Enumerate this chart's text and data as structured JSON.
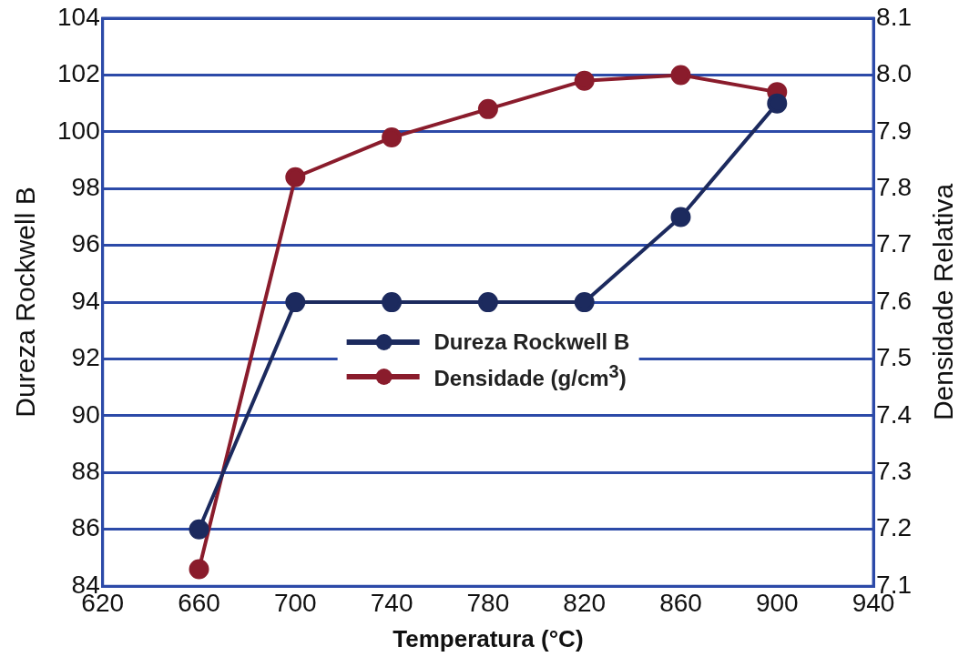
{
  "chart_data": {
    "type": "line",
    "xlabel": "Temperatura (°C)",
    "ylabel": "Dureza Rockwell B",
    "y2label": "Densidade Relativa",
    "x": [
      660,
      700,
      740,
      780,
      820,
      860,
      900
    ],
    "series": [
      {
        "name": "Dureza Rockwell B",
        "color": "#1c2a5e",
        "values": [
          86,
          94,
          94,
          94,
          94,
          97,
          101
        ]
      },
      {
        "name": "Densidade (g/cm$^{3}$)",
        "color": "#8a1c2c",
        "axis": "y2",
        "values": [
          7.13,
          7.82,
          7.89,
          7.94,
          7.99,
          8.0,
          7.97
        ]
      }
    ],
    "xlim": [
      620,
      940
    ],
    "xticks": [
      620,
      660,
      700,
      740,
      780,
      820,
      860,
      900,
      940
    ],
    "ylim": [
      84,
      104
    ],
    "yticks": [
      84,
      86,
      88,
      90,
      92,
      94,
      96,
      98,
      100,
      102,
      104
    ],
    "y2lim": [
      7.1,
      8.1
    ],
    "y2ticks": [
      7.1,
      7.2,
      7.3,
      7.4,
      7.5,
      7.6,
      7.7,
      7.8,
      7.9,
      {
        "value": 8,
        "label": "8.0"
      },
      8.1
    ],
    "grid": "y",
    "legend": "center",
    "marker": "circle",
    "line_style": "solid"
  }
}
